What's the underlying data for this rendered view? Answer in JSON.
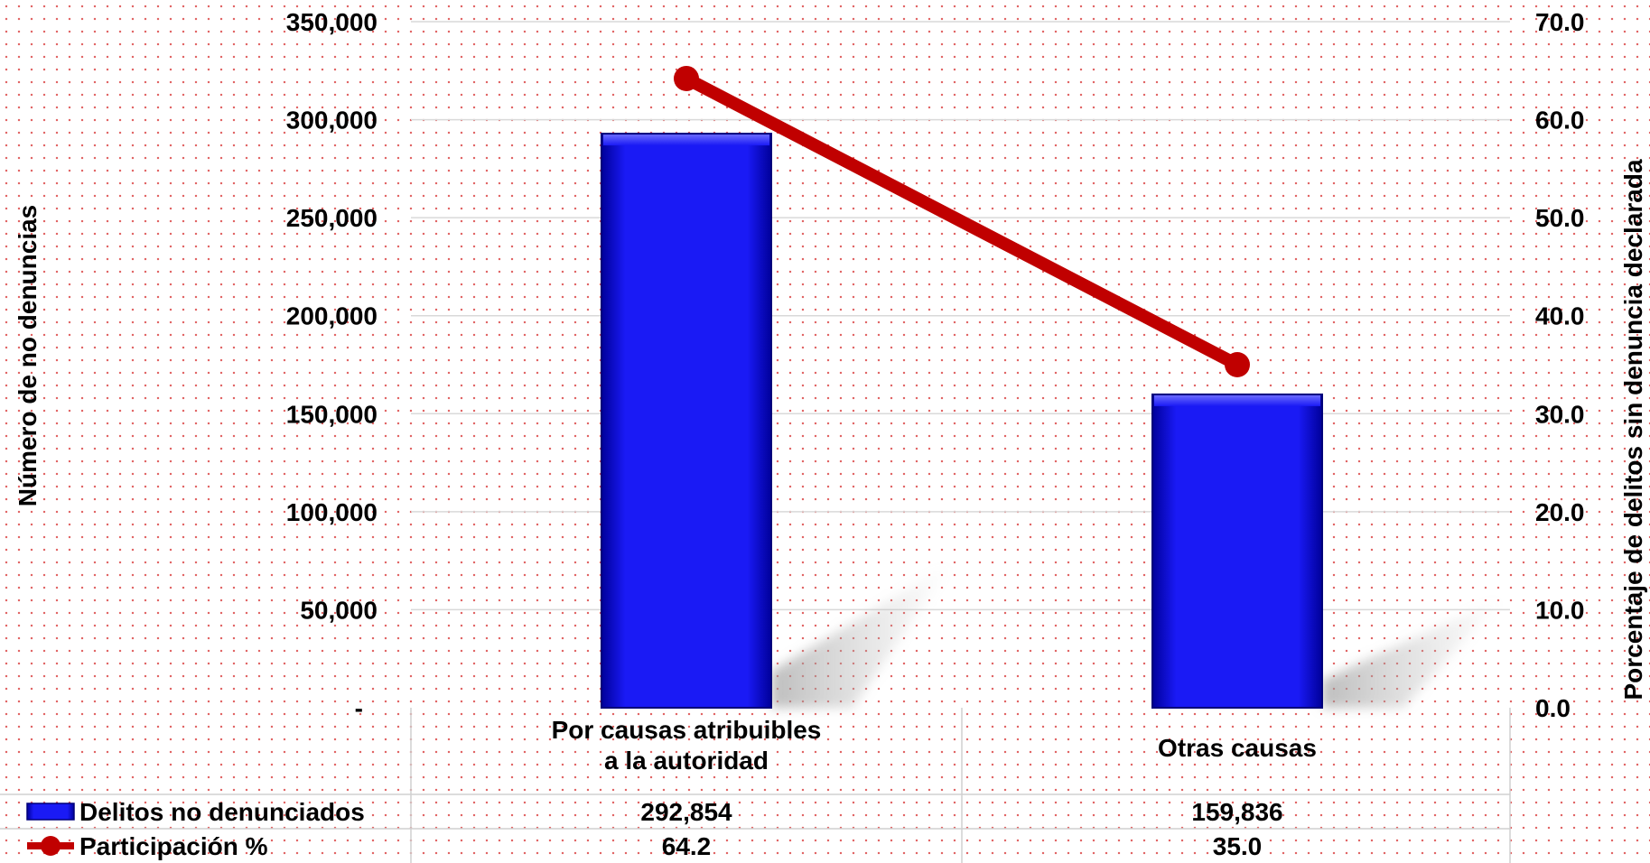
{
  "chart_data": {
    "type": "bar",
    "title": "",
    "categories": [
      "Por causas atribuibles a la autoridad",
      "Otras causas"
    ],
    "category_lines": [
      [
        "Por causas atribuibles",
        "a la autoridad"
      ],
      [
        "Otras causas"
      ]
    ],
    "series": [
      {
        "name": "Delitos no denunciados",
        "type": "bar",
        "axis": "left",
        "color": "#1010ee",
        "values": [
          292854,
          159836
        ],
        "value_labels": [
          "292,854",
          "159,836"
        ]
      },
      {
        "name": "Participación %",
        "type": "line",
        "axis": "right",
        "color": "#c00000",
        "values": [
          64.2,
          35.0
        ],
        "value_labels": [
          "64.2",
          "35.0"
        ]
      }
    ],
    "y_left": {
      "label": "Número de no denuncias",
      "ylim": [
        0,
        350000
      ],
      "ticks": [
        0,
        50000,
        100000,
        150000,
        200000,
        250000,
        300000,
        350000
      ],
      "tick_labels": [
        "-",
        "50,000",
        "100,000",
        "150,000",
        "200,000",
        "250,000",
        "300,000",
        "350,000"
      ]
    },
    "y_right": {
      "label": "Porcentaje de delitos sin denuncia declarada",
      "ylim": [
        0,
        70
      ],
      "ticks": [
        0,
        10,
        20,
        30,
        40,
        50,
        60,
        70
      ],
      "tick_labels": [
        "0.0",
        "10.0",
        "20.0",
        "30.0",
        "40.0",
        "50.0",
        "60.0",
        "70.0"
      ]
    },
    "grid": true,
    "legend": "data-table"
  }
}
